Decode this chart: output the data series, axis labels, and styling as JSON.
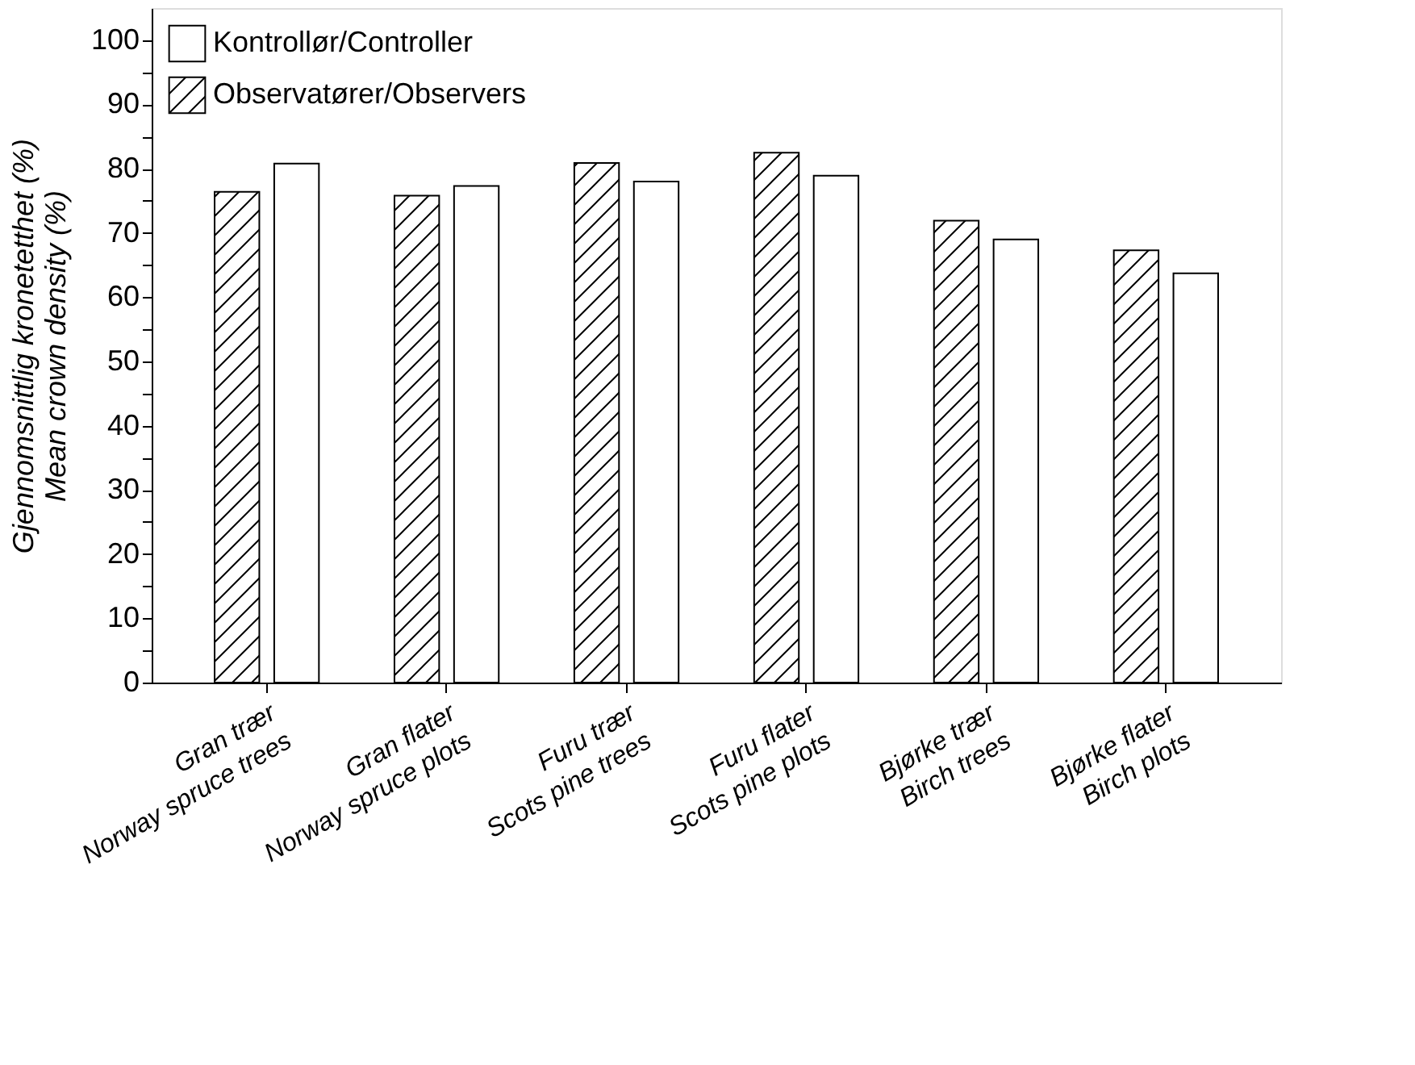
{
  "chart_data": {
    "type": "bar",
    "ylabel": "Gjennomsnittlig kronetetthet (%)\nMean crown density (%)",
    "categories": [
      "Gran trær\nNorway spruce trees",
      "Gran flater\nNorway spruce plots",
      "Furu trær\nScots pine trees",
      "Furu flater\nScots pine plots",
      "Bjørke trær\nBirch trees",
      "Bjørke flater\nBirch plots"
    ],
    "series": [
      {
        "name": "Observatører/Observers",
        "color": "#000000",
        "values": [
          76.4,
          75.8,
          80.9,
          82.5,
          71.9,
          67.3
        ]
      },
      {
        "name": "Kontrollør/Controller",
        "color": "#ffffff",
        "values": [
          80.8,
          77.3,
          78.0,
          78.9,
          69.0,
          63.7
        ]
      }
    ],
    "ylim": [
      0,
      105
    ],
    "yticks": [
      0,
      {
        "value": 5,
        "label": null
      },
      10,
      {
        "value": 15,
        "label": null
      },
      20,
      {
        "value": 25,
        "label": null
      },
      30,
      {
        "value": 35,
        "label": null
      },
      40,
      {
        "value": 45,
        "label": null
      },
      50,
      {
        "value": 55,
        "label": null
      },
      60,
      {
        "value": 65,
        "label": null
      },
      70,
      {
        "value": 75,
        "label": null
      },
      80,
      {
        "value": 85,
        "label": null
      },
      90,
      {
        "value": 95,
        "label": null
      },
      100
    ],
    "legend": "top left",
    "grid": false
  }
}
